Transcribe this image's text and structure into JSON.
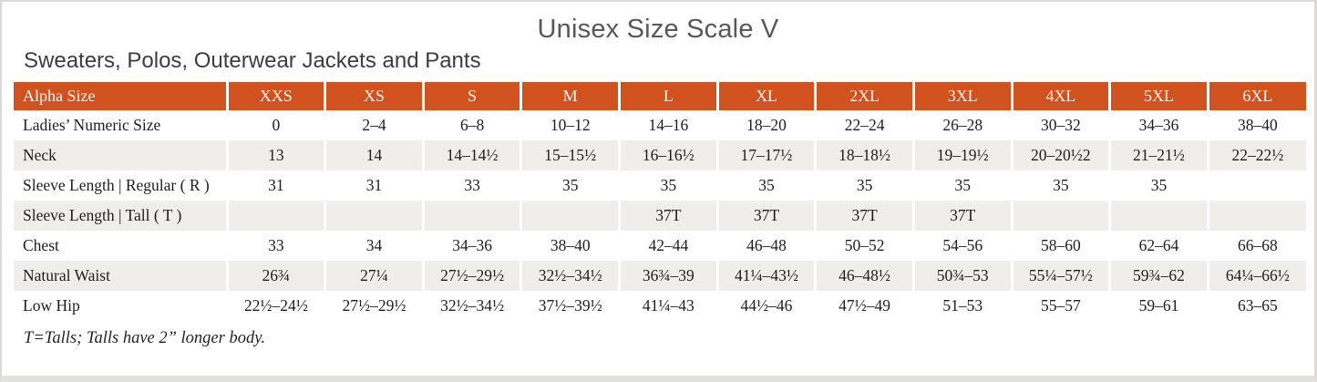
{
  "page": {
    "title": "Unisex Size Scale V",
    "subtitle": "Sweaters, Polos, Outerwear Jackets and Pants",
    "footnote": "T=Talls; Talls have 2” longer body."
  },
  "colors": {
    "header_background": "#d0521e",
    "header_text": "#f7f2ec",
    "stripe_row_background": "#f0eeea"
  },
  "table": {
    "columns": [
      "Alpha Size",
      "XXS",
      "XS",
      "S",
      "M",
      "L",
      "XL",
      "2XL",
      "3XL",
      "4XL",
      "5XL",
      "6XL"
    ],
    "rows": [
      {
        "label": "Ladies’ Numeric Size",
        "cells": [
          "0",
          "2–4",
          "6–8",
          "10–12",
          "14–16",
          "18–20",
          "22–24",
          "26–28",
          "30–32",
          "34–36",
          "38–40"
        ]
      },
      {
        "label": "Neck",
        "cells": [
          "13",
          "14",
          "14–14½",
          "15–15½",
          "16–16½",
          "17–17½",
          "18–18½",
          "19–19½",
          "20–20½2",
          "21–21½",
          "22–22½"
        ]
      },
      {
        "label": "Sleeve Length | Regular ( R )",
        "cells": [
          "31",
          "31",
          "33",
          "35",
          "35",
          "35",
          "35",
          "35",
          "35",
          "35",
          ""
        ]
      },
      {
        "label": "Sleeve Length | Tall ( T )",
        "cells": [
          "",
          "",
          "",
          "",
          "37T",
          "37T",
          "37T",
          "37T",
          "",
          "",
          ""
        ]
      },
      {
        "label": "Chest",
        "cells": [
          "33",
          "34",
          "34–36",
          "38–40",
          "42–44",
          "46–48",
          "50–52",
          "54–56",
          "58–60",
          "62–64",
          "66–68"
        ]
      },
      {
        "label": "Natural Waist",
        "cells": [
          "26¾",
          "27¼",
          "27½–29½",
          "32½–34½",
          "36¾–39",
          "41¼–43½",
          "46–48½",
          "50¾–53",
          "55¼–57½",
          "59¾–62",
          "64¼–66½"
        ]
      },
      {
        "label": "Low Hip",
        "cells": [
          "22½–24½",
          "27½–29½",
          "32½–34½",
          "37½–39½",
          "41¼–43",
          "44½–46",
          "47½–49",
          "51–53",
          "55–57",
          "59–61",
          "63–65"
        ]
      }
    ]
  }
}
